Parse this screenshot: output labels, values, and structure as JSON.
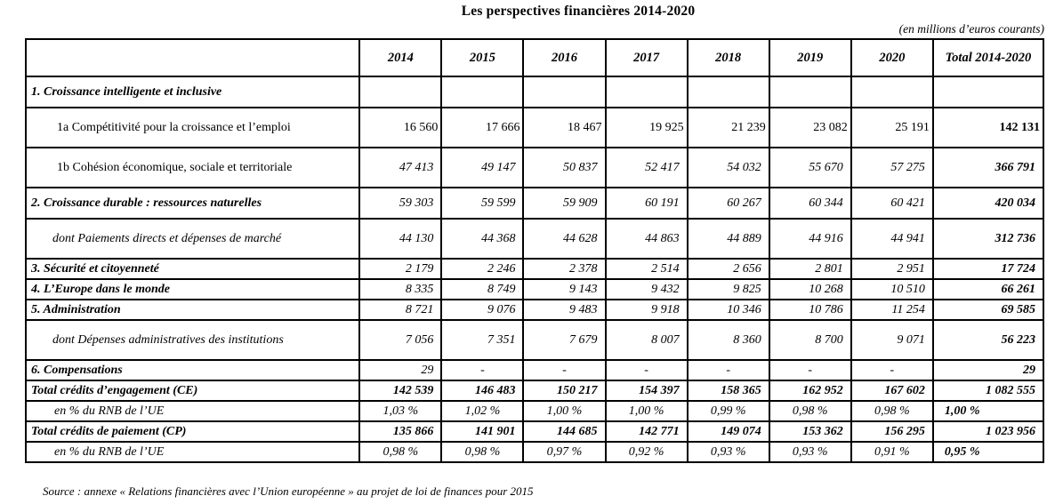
{
  "title": "Les perspectives financières 2014-2020",
  "subtitle": "(en millions d’euros courants)",
  "source": "Source : annexe « Relations financières avec l’Union européenne » au projet de loi de finances pour 2015",
  "table": {
    "columns": [
      "2014",
      "2015",
      "2016",
      "2017",
      "2018",
      "2019",
      "2020",
      "Total 2014-2020"
    ],
    "rows": [
      {
        "label": "1. Croissance intelligente et inclusive",
        "type": "section",
        "size": "md1",
        "values": [
          "",
          "",
          "",
          "",
          "",
          "",
          "",
          ""
        ]
      },
      {
        "label": "1a Compétitivité pour la croissance et l’emploi",
        "type": "sub",
        "size": "lg",
        "valsRoman": true,
        "values": [
          "16 560",
          "17 666",
          "18 467",
          "19 925",
          "21 239",
          "23 082",
          "25 191",
          "142 131"
        ]
      },
      {
        "label": "1b Cohésion économique, sociale et territoriale",
        "type": "sub",
        "size": "lg",
        "values": [
          "47 413",
          "49 147",
          "50 837",
          "52 417",
          "54 032",
          "55 670",
          "57 275",
          "366 791"
        ]
      },
      {
        "label": "2. Croissance durable : ressources naturelles",
        "type": "section",
        "size": "md",
        "values": [
          "59 303",
          "59 599",
          "59 909",
          "60 191",
          "60 267",
          "60 344",
          "60 421",
          "420 034"
        ]
      },
      {
        "label": "dont Paiements directs et dépenses de marché",
        "type": "dont",
        "size": "lg",
        "values": [
          "44 130",
          "44 368",
          "44 628",
          "44 863",
          "44 889",
          "44 916",
          "44 941",
          "312 736"
        ]
      },
      {
        "label": "3. Sécurité et citoyenneté",
        "type": "section",
        "size": "sm",
        "values": [
          "2 179",
          "2 246",
          "2 378",
          "2 514",
          "2 656",
          "2 801",
          "2 951",
          "17 724"
        ]
      },
      {
        "label": "4. L’Europe dans le monde",
        "type": "section",
        "size": "sm",
        "values": [
          "8 335",
          "8 749",
          "9 143",
          "9 432",
          "9 825",
          "10 268",
          "10 510",
          "66 261"
        ]
      },
      {
        "label": "5. Administration",
        "type": "section",
        "size": "sm",
        "values": [
          "8 721",
          "9 076",
          "9 483",
          "9 918",
          "10 346",
          "10 786",
          "11 254",
          "69 585"
        ]
      },
      {
        "label": "dont Dépenses administratives des institutions",
        "type": "dont",
        "size": "lg",
        "values": [
          "7 056",
          "7 351",
          "7 679",
          "8 007",
          "8 360",
          "8 700",
          "9 071",
          "56 223"
        ]
      },
      {
        "label": "6. Compensations",
        "type": "section",
        "size": "sm",
        "values": [
          "29",
          "-",
          "-",
          "-",
          "-",
          "-",
          "-",
          "29"
        ]
      },
      {
        "label": "Total crédits d’engagement (CE)",
        "type": "total",
        "size": "sm",
        "values": [
          "142 539",
          "146 483",
          "150 217",
          "154 397",
          "158 365",
          "162 952",
          "167 602",
          "1 082 555"
        ]
      },
      {
        "label": "en % du RNB de l’UE",
        "type": "pct",
        "size": "sm",
        "values": [
          "1,03 %",
          "1,02 %",
          "1,00 %",
          "1,00 %",
          "0,99 %",
          "0,98 %",
          "0,98 %",
          "1,00 %"
        ]
      },
      {
        "label": "Total crédits de paiement (CP)",
        "type": "total",
        "size": "sm",
        "values": [
          "135 866",
          "141 901",
          "144 685",
          "142 771",
          "149 074",
          "153 362",
          "156 295",
          "1 023 956"
        ]
      },
      {
        "label": "en % du RNB de l’UE",
        "type": "pct",
        "size": "sm",
        "values": [
          "0,98 %",
          "0,98 %",
          "0,97 %",
          "0,92 %",
          "0,93 %",
          "0,93 %",
          "0,91 %",
          "0,95 %"
        ]
      }
    ]
  }
}
